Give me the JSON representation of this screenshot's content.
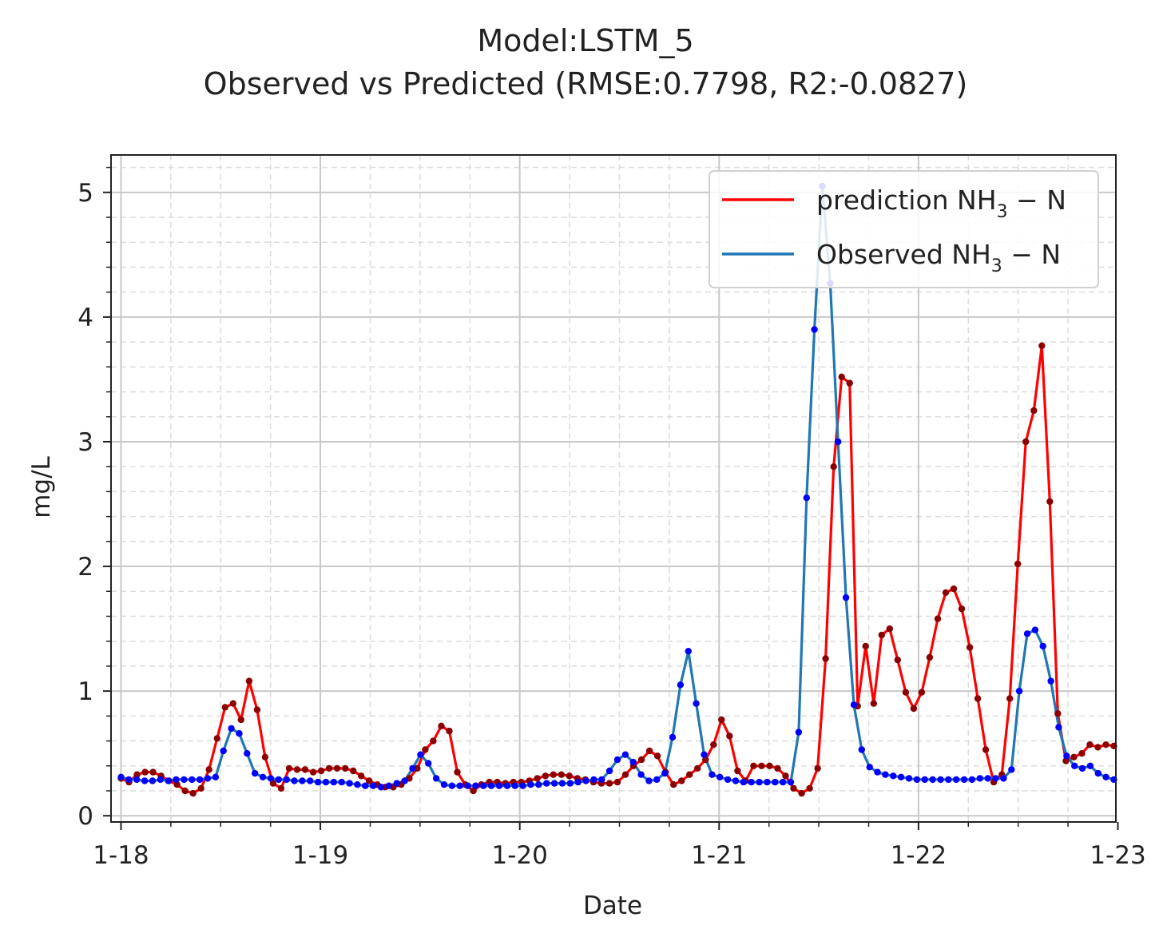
{
  "chart_data": {
    "type": "line",
    "title": "Model:LSTM_5",
    "subtitle": "Observed vs Predicted (RMSE:0.7798, R2:-0.0827)",
    "xlabel": "Date",
    "ylabel": "mg/L",
    "x_ticks": [
      "1-18",
      "1-19",
      "1-20",
      "1-21",
      "1-22",
      "1-23"
    ],
    "y_ticks": [
      "0",
      "1",
      "2",
      "3",
      "4",
      "5"
    ],
    "xlim": [
      -0.05,
      4.99
    ],
    "ylim": [
      -0.05,
      5.3
    ],
    "grid": true,
    "legend_position": "top-right",
    "series": [
      {
        "name": "prediction",
        "legend_parts": [
          "prediction NH",
          "3",
          " − N"
        ],
        "color": "#ff0000",
        "marker_color": "#8b0000",
        "values": [
          0.3,
          0.27,
          0.33,
          0.35,
          0.35,
          0.32,
          0.28,
          0.25,
          0.2,
          0.18,
          0.22,
          0.37,
          0.62,
          0.87,
          0.9,
          0.77,
          1.08,
          0.85,
          0.47,
          0.26,
          0.22,
          0.38,
          0.37,
          0.37,
          0.35,
          0.36,
          0.38,
          0.38,
          0.38,
          0.36,
          0.32,
          0.28,
          0.25,
          0.23,
          0.23,
          0.25,
          0.3,
          0.38,
          0.53,
          0.6,
          0.72,
          0.68,
          0.35,
          0.25,
          0.2,
          0.25,
          0.27,
          0.27,
          0.26,
          0.27,
          0.27,
          0.28,
          0.3,
          0.32,
          0.33,
          0.33,
          0.32,
          0.3,
          0.29,
          0.27,
          0.26,
          0.26,
          0.27,
          0.33,
          0.4,
          0.45,
          0.52,
          0.48,
          0.35,
          0.25,
          0.28,
          0.33,
          0.38,
          0.45,
          0.57,
          0.77,
          0.64,
          0.36,
          0.28,
          0.4,
          0.4,
          0.4,
          0.38,
          0.32,
          0.22,
          0.18,
          0.22,
          0.38,
          1.26,
          2.8,
          3.52,
          3.47,
          0.88,
          1.36,
          0.9,
          1.45,
          1.5,
          1.25,
          0.99,
          0.86,
          0.99,
          1.27,
          1.58,
          1.79,
          1.82,
          1.66,
          1.35,
          0.94,
          0.53,
          0.27,
          0.33,
          0.94,
          2.02,
          3.0,
          3.25,
          3.77,
          2.52,
          0.82,
          0.44,
          0.47,
          0.5,
          0.57,
          0.55,
          0.57,
          0.56
        ]
      },
      {
        "name": "Observed",
        "legend_parts": [
          "Observed NH",
          "3",
          " − N"
        ],
        "color": "#1f77b4",
        "marker_color": "#0000ff",
        "values": [
          0.31,
          0.29,
          0.29,
          0.28,
          0.28,
          0.29,
          0.28,
          0.29,
          0.29,
          0.29,
          0.29,
          0.3,
          0.31,
          0.52,
          0.7,
          0.66,
          0.5,
          0.34,
          0.31,
          0.3,
          0.29,
          0.29,
          0.28,
          0.28,
          0.28,
          0.27,
          0.27,
          0.27,
          0.27,
          0.26,
          0.25,
          0.24,
          0.24,
          0.23,
          0.24,
          0.26,
          0.28,
          0.38,
          0.49,
          0.42,
          0.3,
          0.25,
          0.24,
          0.24,
          0.24,
          0.24,
          0.24,
          0.24,
          0.24,
          0.24,
          0.24,
          0.24,
          0.25,
          0.25,
          0.26,
          0.26,
          0.26,
          0.26,
          0.27,
          0.28,
          0.29,
          0.29,
          0.36,
          0.45,
          0.49,
          0.43,
          0.33,
          0.28,
          0.29,
          0.34,
          0.63,
          1.05,
          1.32,
          0.9,
          0.49,
          0.33,
          0.31,
          0.29,
          0.28,
          0.27,
          0.27,
          0.27,
          0.27,
          0.27,
          0.27,
          0.27,
          0.67,
          2.55,
          3.9,
          5.05,
          4.27,
          3.0,
          1.75,
          0.89,
          0.53,
          0.39,
          0.35,
          0.33,
          0.32,
          0.31,
          0.3,
          0.29,
          0.29,
          0.29,
          0.29,
          0.29,
          0.29,
          0.29,
          0.29,
          0.3,
          0.3,
          0.3,
          0.3,
          0.37,
          1.0,
          1.46,
          1.49,
          1.36,
          1.08,
          0.71,
          0.48,
          0.4,
          0.38,
          0.4,
          0.34,
          0.31,
          0.29
        ]
      }
    ]
  }
}
